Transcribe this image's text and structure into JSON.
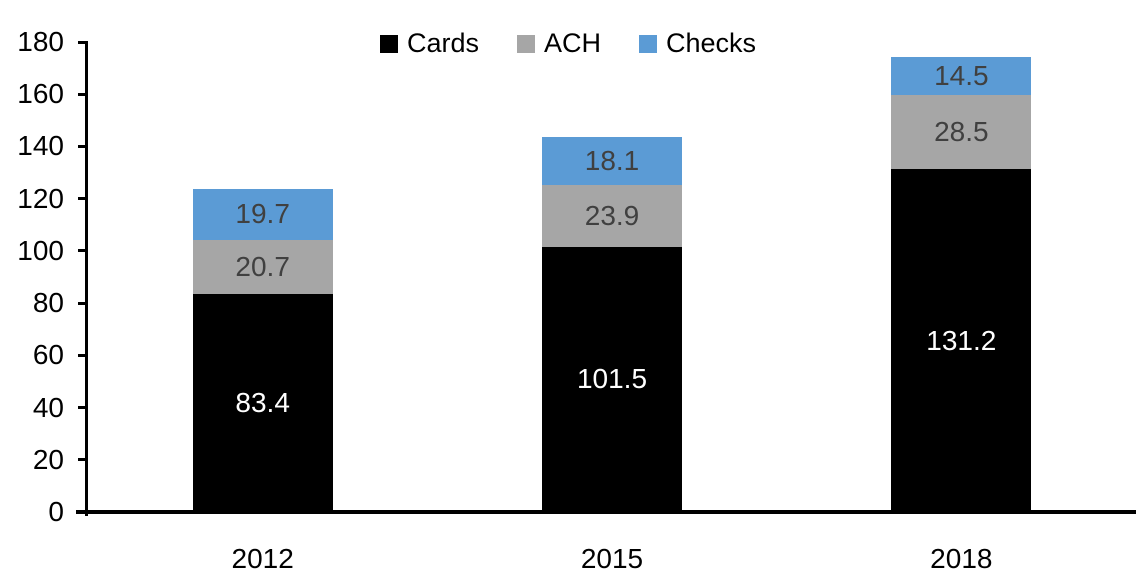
{
  "chart_data": {
    "type": "bar",
    "stacked": true,
    "categories": [
      "2012",
      "2015",
      "2018"
    ],
    "series": [
      {
        "name": "Cards",
        "color": "#000000",
        "label_color": "#ffffff",
        "values": [
          83.4,
          101.5,
          131.2
        ]
      },
      {
        "name": "ACH",
        "color": "#A6A6A6",
        "label_color": "#404040",
        "values": [
          20.7,
          23.9,
          28.5
        ]
      },
      {
        "name": "Checks",
        "color": "#5B9BD5",
        "label_color": "#404040",
        "values": [
          19.7,
          18.1,
          14.5
        ]
      }
    ],
    "title": "",
    "xlabel": "",
    "ylabel": "",
    "ylim": [
      0,
      180
    ],
    "yticks": [
      0,
      20,
      40,
      60,
      80,
      100,
      120,
      140,
      160,
      180
    ],
    "grid": "off",
    "legend_position": "top-center",
    "data_labels": "inside-center"
  }
}
